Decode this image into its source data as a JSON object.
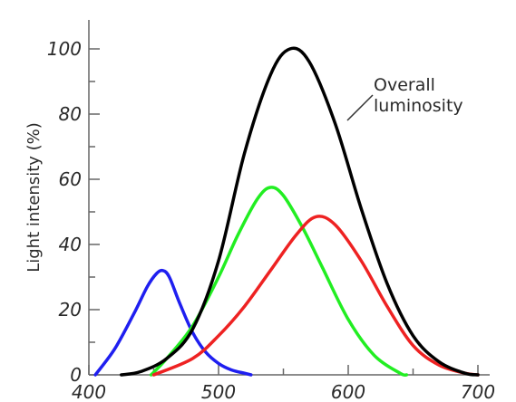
{
  "chart_data": {
    "type": "line",
    "title": "",
    "xlabel": "",
    "ylabel": "Light intensity (%)",
    "xlim": [
      400,
      700
    ],
    "ylim": [
      0,
      105
    ],
    "x_ticks": [
      "400",
      "500",
      "600",
      "700"
    ],
    "y_ticks": [
      "0",
      "20",
      "40",
      "60",
      "80",
      "100"
    ],
    "grid": false,
    "legend": "none",
    "annotation": {
      "lines": [
        "Overall",
        "luminosity"
      ],
      "target_series": "luminosity"
    },
    "series": [
      {
        "key": "blue",
        "color": "#1f1ff0",
        "x": [
          405,
          420,
          435,
          445,
          452,
          457,
          462,
          470,
          480,
          490,
          500,
          510,
          520,
          525
        ],
        "y": [
          0,
          8,
          19,
          27,
          31,
          32,
          30,
          22,
          13,
          7,
          3.5,
          1.5,
          0.5,
          0
        ]
      },
      {
        "key": "green",
        "color": "#22ee22",
        "x": [
          448,
          460,
          480,
          500,
          515,
          530,
          540,
          550,
          565,
          580,
          600,
          620,
          640,
          645
        ],
        "y": [
          0,
          5,
          15,
          30,
          43,
          54,
          57.5,
          55,
          45,
          33,
          17,
          6,
          0.5,
          0
        ]
      },
      {
        "key": "red",
        "color": "#ee2222",
        "x": [
          450,
          480,
          500,
          520,
          540,
          560,
          575,
          590,
          610,
          630,
          650,
          670,
          690,
          700
        ],
        "y": [
          0,
          5,
          12,
          21,
          32,
          43,
          48.5,
          46,
          35,
          21,
          9,
          3,
          0.5,
          0
        ]
      },
      {
        "key": "luminosity",
        "color": "#000000",
        "x": [
          425,
          440,
          460,
          480,
          500,
          520,
          540,
          555,
          570,
          590,
          610,
          630,
          650,
          670,
          690,
          700
        ],
        "y": [
          0,
          1,
          5,
          14,
          35,
          68,
          92,
          100,
          96,
          77,
          51,
          28,
          12,
          4,
          0.5,
          0
        ]
      }
    ]
  }
}
